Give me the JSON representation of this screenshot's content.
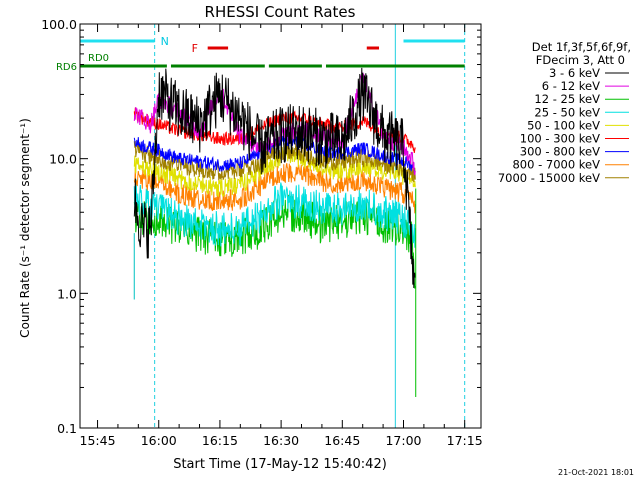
{
  "chart_data": {
    "type": "line",
    "title": "RHESSI Count Rates",
    "xlabel": "Start Time (17-May-12 15:40:42)",
    "ylabel": "Count Rate (s⁻¹ detector segment⁻¹)",
    "yscale": "log",
    "ylim": [
      0.1,
      100
    ],
    "xlim": [
      "15:40:42",
      "17:19:00"
    ],
    "ytick_labels": [
      "0.1",
      "1.0",
      "10.0",
      "100.0"
    ],
    "xtick_labels": [
      "15:45",
      "16:00",
      "16:15",
      "16:30",
      "16:45",
      "17:00",
      "17:15"
    ],
    "legend_header": [
      "Det 1f,3f,5f,6f,9f,",
      "FDecim 3, Att 0"
    ],
    "legend_position": "right",
    "footer_date": "21-Oct-2021 18:01",
    "data_start": "15:54",
    "data_end": "17:03",
    "series": [
      {
        "name": "3 - 6 keV",
        "color": "#000000",
        "x": [
          "15:54",
          "15:56",
          "15:58",
          "16:00",
          "16:05",
          "16:10",
          "16:15",
          "16:20",
          "16:25",
          "16:30",
          "16:35",
          "16:40",
          "16:45",
          "16:50",
          "16:55",
          "17:00",
          "17:02",
          "17:03"
        ],
        "values": [
          5,
          3,
          3,
          32,
          22,
          18,
          30,
          20,
          12,
          15,
          16,
          14,
          13,
          30,
          15,
          12,
          2,
          0.9
        ]
      },
      {
        "name": "6 - 12 keV",
        "color": "#e000e0",
        "x": [
          "15:54",
          "15:56",
          "15:58",
          "16:00",
          "16:05",
          "16:10",
          "16:15",
          "16:20",
          "16:25",
          "16:30",
          "16:35",
          "16:40",
          "16:45",
          "16:50",
          "16:55",
          "17:00",
          "17:02",
          "17:03"
        ],
        "values": [
          22,
          20,
          18,
          28,
          22,
          16,
          32,
          15,
          12,
          15,
          16,
          15,
          13,
          40,
          15,
          12,
          10,
          8
        ]
      },
      {
        "name": "12 - 25 keV",
        "color": "#00c000",
        "x": [
          "15:54",
          "15:56",
          "15:58",
          "16:00",
          "16:05",
          "16:10",
          "16:15",
          "16:20",
          "16:25",
          "16:30",
          "16:35",
          "16:40",
          "16:45",
          "16:50",
          "16:55",
          "17:00",
          "17:02",
          "17:03"
        ],
        "values": [
          4,
          3.5,
          3.5,
          3.6,
          3,
          2.7,
          2.5,
          2.5,
          3,
          4,
          3.8,
          3.2,
          3.5,
          3.8,
          3.2,
          3,
          2.5,
          1
        ]
      },
      {
        "name": "25 - 50 keV",
        "color": "#00e0e0",
        "x": [
          "15:54",
          "15:56",
          "15:58",
          "16:00",
          "16:05",
          "16:10",
          "16:15",
          "16:20",
          "16:25",
          "16:30",
          "16:35",
          "16:40",
          "16:45",
          "16:50",
          "16:55",
          "17:00",
          "17:02",
          "17:03"
        ],
        "values": [
          5.5,
          4.6,
          4.5,
          4.2,
          3.6,
          3.2,
          3,
          3,
          3.8,
          5,
          4.8,
          4.2,
          4.2,
          4.6,
          4,
          3.5,
          3,
          2.5
        ]
      },
      {
        "name": "50 - 100 keV",
        "color": "#e0e000",
        "x": [
          "15:54",
          "15:56",
          "15:58",
          "16:00",
          "16:05",
          "16:10",
          "16:15",
          "16:20",
          "16:25",
          "16:30",
          "16:35",
          "16:40",
          "16:45",
          "16:50",
          "16:55",
          "17:00",
          "17:02",
          "17:03"
        ],
        "values": [
          9,
          8.5,
          8.5,
          8,
          7,
          6.5,
          6,
          6.4,
          8,
          10.5,
          10,
          8.5,
          8,
          8.8,
          8,
          7.5,
          7,
          6.5
        ]
      },
      {
        "name": "100 - 300 keV",
        "color": "#ff0000",
        "x": [
          "15:54",
          "15:56",
          "15:58",
          "16:00",
          "16:05",
          "16:10",
          "16:15",
          "16:20",
          "16:25",
          "16:30",
          "16:35",
          "16:40",
          "16:45",
          "16:50",
          "16:55",
          "17:00",
          "17:02",
          "17:03"
        ],
        "values": [
          22,
          20,
          19,
          18,
          16,
          15,
          14,
          14,
          17,
          20,
          20,
          18,
          17,
          19,
          16,
          14,
          13,
          12
        ]
      },
      {
        "name": "300 - 800 keV",
        "color": "#0000ff",
        "x": [
          "15:54",
          "15:56",
          "15:58",
          "16:00",
          "16:05",
          "16:10",
          "16:15",
          "16:20",
          "16:25",
          "16:30",
          "16:35",
          "16:40",
          "16:45",
          "16:50",
          "16:55",
          "17:00",
          "17:02",
          "17:03"
        ],
        "values": [
          13.5,
          12.5,
          12,
          11.5,
          10,
          9.5,
          9,
          9.2,
          11,
          13.5,
          13,
          11.5,
          11,
          12,
          10.5,
          9.5,
          9,
          8.5
        ]
      },
      {
        "name": "800 - 7000 keV",
        "color": "#ff8000",
        "x": [
          "15:54",
          "15:56",
          "15:58",
          "16:00",
          "16:05",
          "16:10",
          "16:15",
          "16:20",
          "16:25",
          "16:30",
          "16:35",
          "16:40",
          "16:45",
          "16:50",
          "16:55",
          "17:00",
          "17:02",
          "17:03"
        ],
        "values": [
          7.5,
          7,
          6.8,
          6.5,
          5.5,
          5,
          4.8,
          5,
          6.3,
          8,
          7.8,
          6.8,
          6.5,
          7,
          6.2,
          5.5,
          5,
          4.5
        ]
      },
      {
        "name": "7000 - 15000 keV",
        "color": "#a08000",
        "x": [
          "15:54",
          "15:56",
          "15:58",
          "16:00",
          "16:05",
          "16:10",
          "16:15",
          "16:20",
          "16:25",
          "16:30",
          "16:35",
          "16:40",
          "16:45",
          "16:50",
          "16:55",
          "17:00",
          "17:02",
          "17:03"
        ],
        "values": [
          12,
          11,
          10.5,
          10,
          9,
          8.5,
          8,
          8.2,
          9.5,
          11.5,
          11,
          9.8,
          9.5,
          10.2,
          9.2,
          8.5,
          8,
          7.5
        ]
      }
    ],
    "annotations": {
      "night_label": "N",
      "flare_label": "F",
      "rd0_label": "RD0",
      "rd6_label": "RD6",
      "night_bars": [
        [
          "15:40:42",
          "15:59"
        ],
        [
          "17:00",
          "17:15"
        ]
      ],
      "night_lines": [
        "15:40:42",
        "15:59",
        "16:58",
        "17:15"
      ],
      "flare_bars": [
        [
          "16:12",
          "16:17"
        ],
        [
          "16:51",
          "16:54"
        ]
      ],
      "rd6_bars": [
        [
          "15:40:42",
          "16:02"
        ],
        [
          "16:03",
          "16:26"
        ],
        [
          "16:27",
          "16:40"
        ],
        [
          "16:41",
          "17:15"
        ]
      ]
    }
  }
}
